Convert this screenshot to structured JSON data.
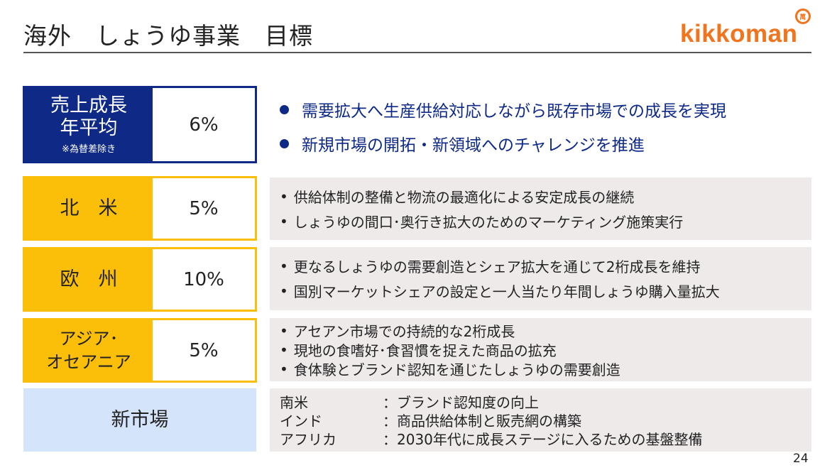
{
  "header": {
    "title": "海外　しょうゆ事業　目標",
    "logo_text": "kikkoman",
    "logo_mark": "萬"
  },
  "target": {
    "label_line1": "売上成長",
    "label_line2": "年平均",
    "note": "※為替差除き",
    "value": "6%",
    "bullets": [
      "需要拡大へ生産供給対応しながら既存市場での成長を実現",
      "新規市場の開拓・新領域へのチャレンジを推進"
    ]
  },
  "regions": [
    {
      "name": "北　米",
      "value": "5%",
      "items": [
        "供給体制の整備と物流の最適化による安定成長の継続",
        "しょうゆの間口･奥行き拡大のためのマーケティング施策実行"
      ]
    },
    {
      "name": "欧　州",
      "value": "10%",
      "items": [
        "更なるしょうゆの需要創造とシェア拡大を通じて2桁成長を維持",
        "国別マーケットシェアの設定と一人当たり年間しょうゆ購入量拡大"
      ]
    },
    {
      "name_line1": "アジア･",
      "name_line2": "オセアニア",
      "value": "5%",
      "items": [
        "アセアン市場での持続的な2桁成長",
        "現地の食嗜好･食習慣を捉えた商品の拡充",
        "食体験とブランド認知を通じたしょうゆの需要創造"
      ]
    }
  ],
  "new_market": {
    "label": "新市場",
    "rows": [
      {
        "region": "南米",
        "text": "：ブランド認知度の向上"
      },
      {
        "region": "インド",
        "text": "：商品供給体制と販売網の構築"
      },
      {
        "region": "アフリカ",
        "text": "：2030年代に成長ステージに入るための基盤整備"
      }
    ]
  },
  "bullet_glyph": "•",
  "page_number": "24"
}
